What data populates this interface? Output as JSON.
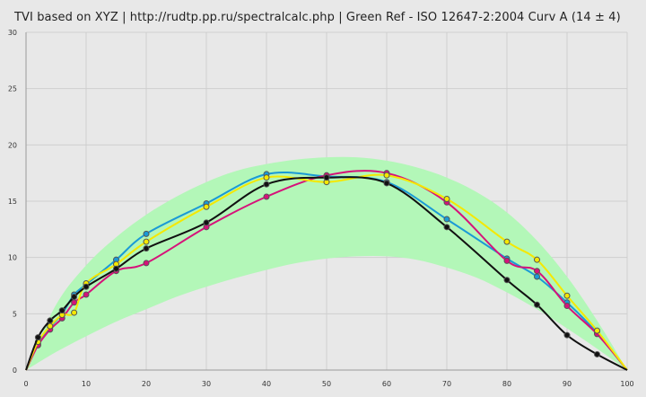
{
  "title": "TVI based on XYZ  |  http://rudtp.pp.ru/spectralcalc.php  |  Green Ref - ISO 12647-2:2004 Curv A (14 ± 4)",
  "colors": {
    "background": "#e8e8e8",
    "grid": "#cfcfcf",
    "tolerance_band": "#b3f7b8",
    "cyan": "#1a9ad6",
    "magenta": "#d6127a",
    "yellow": "#f5e800",
    "black": "#111111"
  },
  "chart_data": {
    "type": "line",
    "title": "TVI based on XYZ  |  http://rudtp.pp.ru/spectralcalc.php  |  Green Ref - ISO 12647-2:2004 Curv A (14 ± 4)",
    "xlabel": "",
    "ylabel": "",
    "xlim": [
      0,
      100
    ],
    "ylim": [
      0,
      30
    ],
    "grid": true,
    "x_ticks": [
      0,
      10,
      20,
      30,
      40,
      50,
      60,
      70,
      80,
      90,
      100
    ],
    "y_ticks": [
      0,
      5,
      10,
      15,
      20,
      25,
      30
    ],
    "reference_band": {
      "x": [
        0,
        5,
        10,
        15,
        20,
        25,
        30,
        35,
        40,
        45,
        50,
        55,
        60,
        65,
        70,
        75,
        80,
        85,
        90,
        95,
        100
      ],
      "upper": [
        0,
        5.8,
        9.3,
        11.8,
        13.8,
        15.4,
        16.7,
        17.7,
        18.3,
        18.7,
        18.9,
        18.9,
        18.6,
        18.0,
        17.1,
        15.8,
        14.0,
        11.5,
        8.3,
        4.4,
        0
      ],
      "lower": [
        0,
        1.6,
        3.0,
        4.3,
        5.4,
        6.5,
        7.4,
        8.2,
        8.9,
        9.5,
        9.9,
        10.1,
        10.1,
        9.8,
        9.1,
        8.2,
        6.9,
        5.4,
        3.7,
        1.9,
        0
      ]
    },
    "series": [
      {
        "color": "#1a9ad6",
        "x": [
          0,
          2,
          4,
          6,
          8,
          10,
          15,
          20,
          30,
          40,
          50,
          60,
          70,
          80,
          85,
          90,
          95,
          100
        ],
        "y": [
          0,
          2.3,
          3.8,
          5.0,
          6.7,
          7.6,
          9.8,
          12.1,
          14.8,
          17.4,
          17.2,
          16.7,
          13.4,
          9.9,
          8.3,
          6.0,
          3.3,
          0
        ]
      },
      {
        "color": "#d6127a",
        "x": [
          0,
          2,
          4,
          6,
          8,
          10,
          15,
          20,
          30,
          40,
          50,
          60,
          70,
          80,
          85,
          90,
          95,
          100
        ],
        "y": [
          0,
          2.2,
          3.6,
          4.6,
          6.0,
          6.7,
          8.8,
          9.5,
          12.7,
          15.4,
          17.3,
          17.5,
          14.9,
          9.7,
          8.8,
          5.7,
          3.2,
          0
        ]
      },
      {
        "color": "#f5e800",
        "x": [
          0,
          2,
          4,
          6,
          8,
          10,
          15,
          20,
          30,
          40,
          50,
          60,
          70,
          80,
          85,
          90,
          95,
          100
        ],
        "y": [
          0,
          2.5,
          3.9,
          4.9,
          5.1,
          7.7,
          9.4,
          11.4,
          14.5,
          17.1,
          16.7,
          17.3,
          15.2,
          11.4,
          9.8,
          6.6,
          3.5,
          0
        ]
      },
      {
        "color": "#111111",
        "x": [
          0,
          2,
          4,
          6,
          8,
          10,
          15,
          20,
          30,
          40,
          50,
          60,
          70,
          80,
          85,
          90,
          95,
          100
        ],
        "y": [
          0,
          2.9,
          4.4,
          5.3,
          6.5,
          7.4,
          9.0,
          10.8,
          13.1,
          16.5,
          17.1,
          16.6,
          12.7,
          8.0,
          5.8,
          3.1,
          1.4,
          0
        ]
      }
    ]
  }
}
